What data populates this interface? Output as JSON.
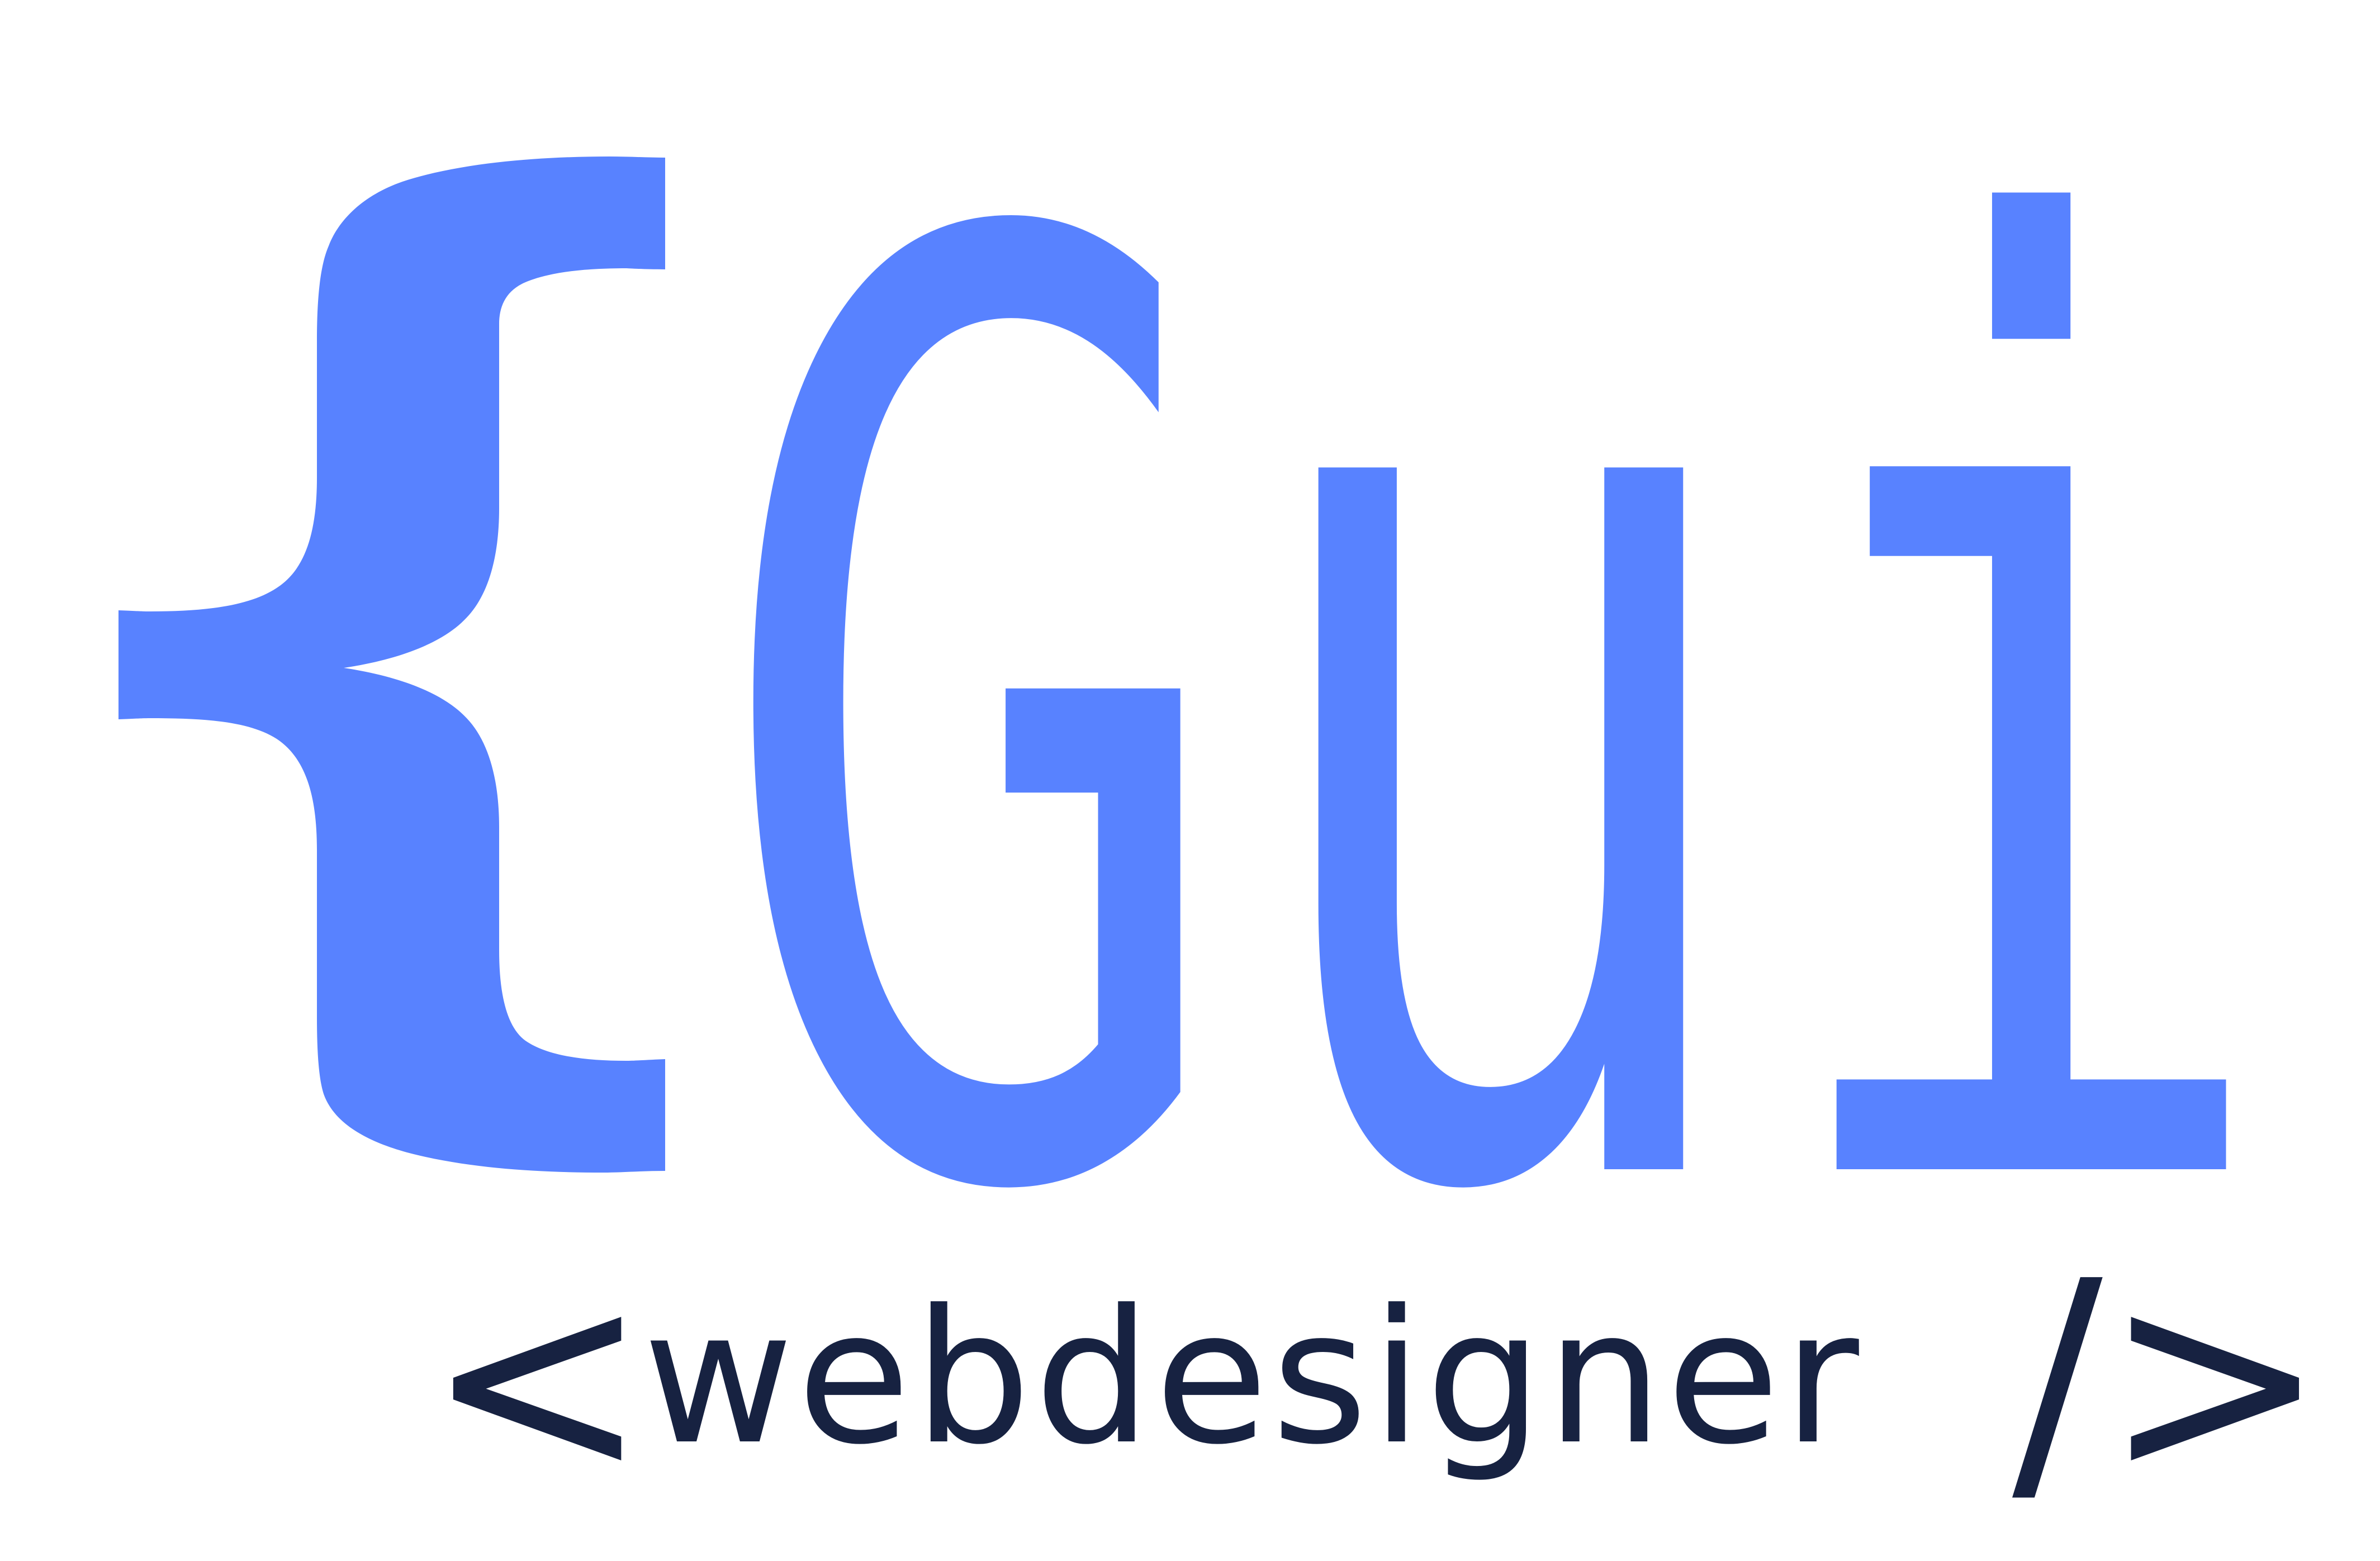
{
  "logo": {
    "main_text": "Gui",
    "tagline_open": "<",
    "tagline_word": "webdesigner",
    "tagline_close": "/>",
    "colors": {
      "primary": "#5882FF",
      "secondary": "#172241",
      "background": "#ffffff"
    },
    "icons": {
      "brace": "left-curly-brace-icon"
    }
  }
}
